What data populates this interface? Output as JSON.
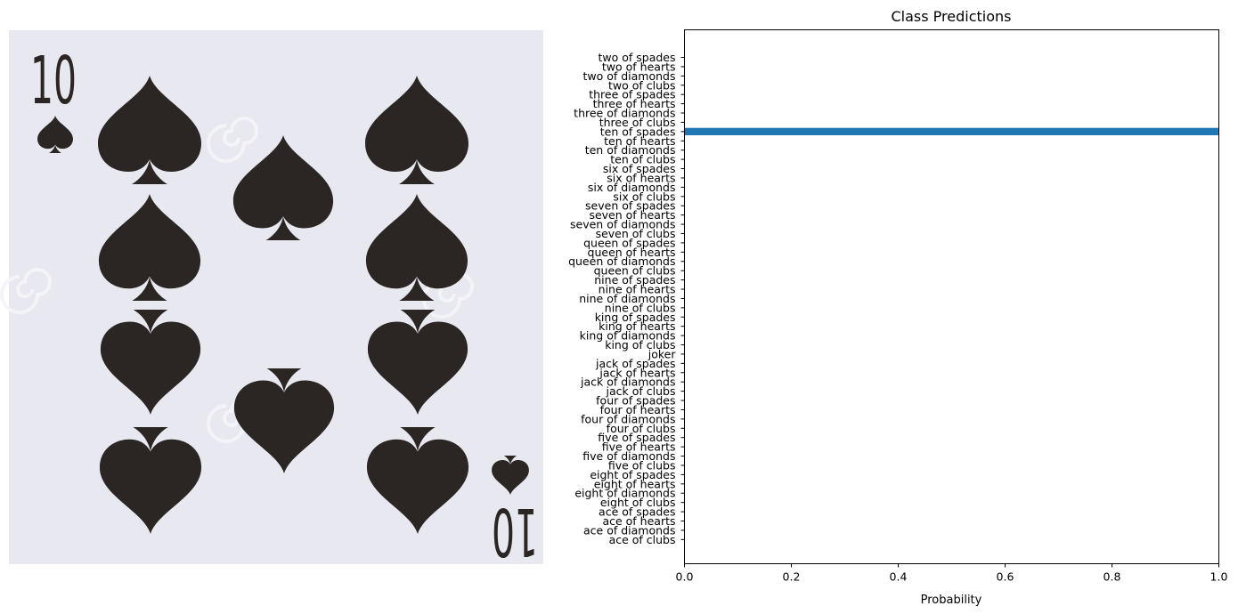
{
  "image_panel": {
    "card_rank_top": "10",
    "card_rank_bottom": "10",
    "card_suit_icon": "spade-icon",
    "card_ink_color": "#2b2523",
    "card_background_color": "#e8e8f0"
  },
  "chart_data": {
    "type": "bar",
    "orientation": "horizontal",
    "title": "Class Predictions",
    "xlabel": "Probability",
    "ylabel": "",
    "xlim": [
      0,
      1
    ],
    "xticks": [
      "0.0",
      "0.2",
      "0.4",
      "0.6",
      "0.8",
      "1.0"
    ],
    "xtick_values": [
      0,
      0.2,
      0.4,
      0.6,
      0.8,
      1.0
    ],
    "bar_color": "#1f77b4",
    "grid": false,
    "categories": [
      "two of spades",
      "two of hearts",
      "two of diamonds",
      "two of clubs",
      "three of spades",
      "three of hearts",
      "three of diamonds",
      "three of clubs",
      "ten of spades",
      "ten of hearts",
      "ten of diamonds",
      "ten of clubs",
      "six of spades",
      "six of hearts",
      "six of diamonds",
      "six of clubs",
      "seven of spades",
      "seven of hearts",
      "seven of diamonds",
      "seven of clubs",
      "queen of spades",
      "queen of hearts",
      "queen of diamonds",
      "queen of clubs",
      "nine of spades",
      "nine of hearts",
      "nine of diamonds",
      "nine of clubs",
      "king of spades",
      "king of hearts",
      "king of diamonds",
      "king of clubs",
      "joker",
      "jack of spades",
      "jack of hearts",
      "jack of diamonds",
      "jack of clubs",
      "four of spades",
      "four of hearts",
      "four of diamonds",
      "four of clubs",
      "five of spades",
      "five of hearts",
      "five of diamonds",
      "five of clubs",
      "eight of spades",
      "eight of hearts",
      "eight of diamonds",
      "eight of clubs",
      "ace of spades",
      "ace of hearts",
      "ace of diamonds",
      "ace of clubs"
    ],
    "values": [
      0,
      0,
      0,
      0,
      0,
      0,
      0,
      0,
      0.999,
      0,
      0,
      0,
      0,
      0,
      0,
      0,
      0,
      0,
      0,
      0,
      0,
      0,
      0,
      0,
      0,
      0,
      0,
      0,
      0,
      0,
      0,
      0,
      0,
      0,
      0,
      0,
      0,
      0,
      0,
      0,
      0,
      0,
      0,
      0,
      0,
      0,
      0,
      0,
      0,
      0,
      0,
      0,
      0
    ]
  }
}
